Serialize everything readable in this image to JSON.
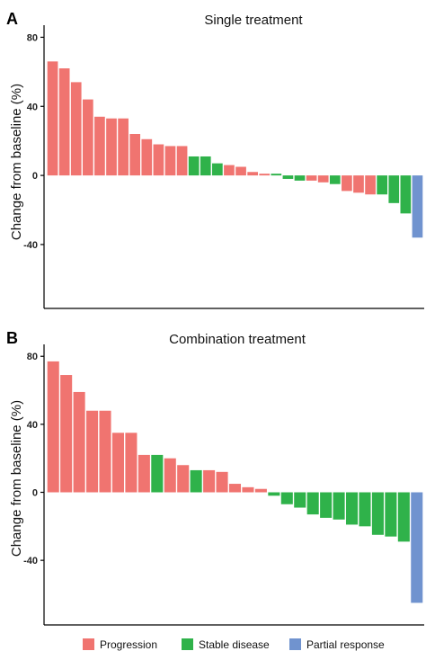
{
  "colors": {
    "Progression": "#f07470",
    "Stable disease": "#2fb24a",
    "Partial response": "#7093cf"
  },
  "legend": [
    "Progression",
    "Stable disease",
    "Partial response"
  ],
  "chart_data": [
    {
      "type": "bar",
      "panel": "A",
      "title": "Single treatment",
      "ylabel": "Change from baseline (%)",
      "ylim": [
        -77,
        87
      ],
      "yticks": [
        80,
        40,
        0,
        -40
      ],
      "ytick_labels": [
        "80",
        "40",
        "0",
        "-40"
      ],
      "values": [
        66,
        62,
        54,
        44,
        34,
        33,
        33,
        24,
        21,
        18,
        17,
        17,
        11,
        11,
        7,
        6,
        5,
        2,
        1,
        1,
        -2,
        -3,
        -3,
        -4,
        -5,
        -9,
        -10,
        -11,
        -11,
        -16,
        -22,
        -36
      ],
      "categories_by_bar": [
        "Progression",
        "Progression",
        "Progression",
        "Progression",
        "Progression",
        "Progression",
        "Progression",
        "Progression",
        "Progression",
        "Progression",
        "Progression",
        "Progression",
        "Stable disease",
        "Stable disease",
        "Stable disease",
        "Progression",
        "Progression",
        "Progression",
        "Progression",
        "Stable disease",
        "Stable disease",
        "Stable disease",
        "Progression",
        "Progression",
        "Stable disease",
        "Progression",
        "Progression",
        "Progression",
        "Stable disease",
        "Stable disease",
        "Stable disease",
        "Partial response"
      ]
    },
    {
      "type": "bar",
      "panel": "B",
      "title": "Combination treatment",
      "ylabel": "Change from baseline (%)",
      "ylim": [
        -78,
        87
      ],
      "yticks": [
        80,
        40,
        0,
        -40
      ],
      "ytick_labels": [
        "80",
        "40",
        "0",
        "-40"
      ],
      "values": [
        77,
        69,
        59,
        48,
        48,
        35,
        35,
        22,
        22,
        20,
        16,
        13,
        13,
        12,
        5,
        3,
        2,
        -2,
        -7,
        -9,
        -13,
        -15,
        -16,
        -19,
        -20,
        -25,
        -26,
        -29,
        -65
      ],
      "categories_by_bar": [
        "Progression",
        "Progression",
        "Progression",
        "Progression",
        "Progression",
        "Progression",
        "Progression",
        "Progression",
        "Stable disease",
        "Progression",
        "Progression",
        "Stable disease",
        "Progression",
        "Progression",
        "Progression",
        "Progression",
        "Progression",
        "Stable disease",
        "Stable disease",
        "Stable disease",
        "Stable disease",
        "Stable disease",
        "Stable disease",
        "Stable disease",
        "Stable disease",
        "Stable disease",
        "Stable disease",
        "Stable disease",
        "Partial response"
      ]
    }
  ]
}
